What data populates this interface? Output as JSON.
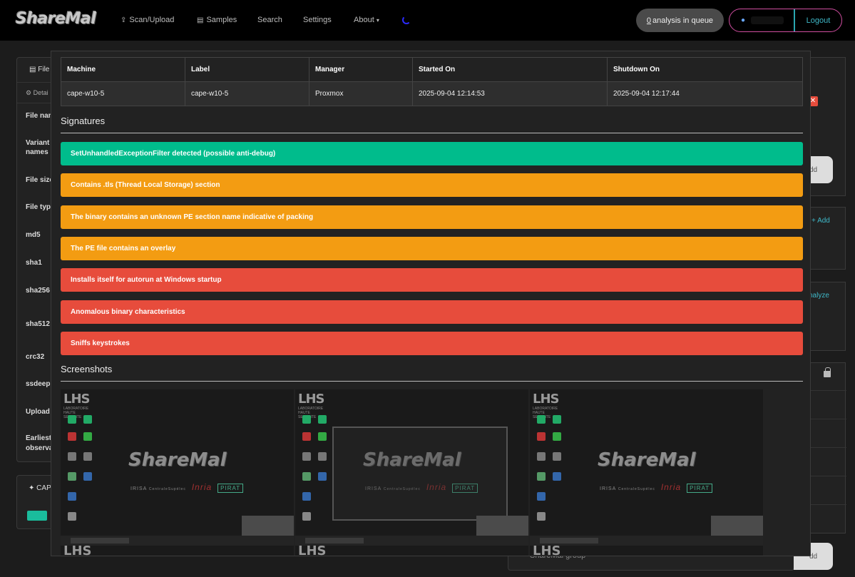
{
  "navbar": {
    "brand": "ShareMal",
    "items": [
      {
        "label": "Scan/Upload",
        "icon": "upload-icon"
      },
      {
        "label": "Samples",
        "icon": "file-icon"
      },
      {
        "label": "Search"
      },
      {
        "label": "Settings"
      },
      {
        "label": "About",
        "caret": "▾"
      }
    ],
    "queue_count": "0",
    "queue_text": "analysis in queue",
    "logout": "Logout"
  },
  "background": {
    "tab_file": "File",
    "tab_details": "Detai",
    "rows": [
      "File nam",
      "Variant",
      "names",
      "File size",
      "File typ",
      "md5",
      "sha1",
      "sha256",
      "sha512",
      "crc32",
      "ssdeep",
      "Upload",
      "Earliest",
      "observa"
    ],
    "cape": "CAP",
    "add1": "dd",
    "add2": "Add",
    "analyze": "nalyze",
    "group_placeholder": "ShareMal group",
    "add3": "dd"
  },
  "modal": {
    "table": {
      "headers": [
        "Machine",
        "Label",
        "Manager",
        "Started On",
        "Shutdown On"
      ],
      "row": [
        "cape-w10-5",
        "cape-w10-5",
        "Proxmox",
        "2025-09-04 12:14:53",
        "2025-09-04 12:17:44"
      ]
    },
    "signatures_title": "Signatures",
    "signatures": [
      {
        "text": "SetUnhandledExceptionFilter detected (possible anti-debug)",
        "color": "#00bc8c"
      },
      {
        "text": "Contains .tls (Thread Local Storage) section",
        "color": "#f39c12"
      },
      {
        "text": "The binary contains an unknown PE section name indicative of packing",
        "color": "#f39c12"
      },
      {
        "text": "The PE file contains an overlay",
        "color": "#f39c12"
      },
      {
        "text": "Installs itself for autorun at Windows startup",
        "color": "#e74c3c"
      },
      {
        "text": "Anomalous binary characteristics",
        "color": "#e74c3c"
      },
      {
        "text": "Sniffs keystrokes",
        "color": "#e74c3c"
      }
    ],
    "screenshots_title": "Screenshots",
    "screenshot": {
      "lhs": "LHS",
      "lhs_sub": "LABORATOIRE HAUTE SECURITE",
      "logo": "ShareMal",
      "irisa": "IRISA",
      "cs": "CentraleSupélec",
      "inria": "Inria",
      "pirat": "PIRAT"
    }
  }
}
